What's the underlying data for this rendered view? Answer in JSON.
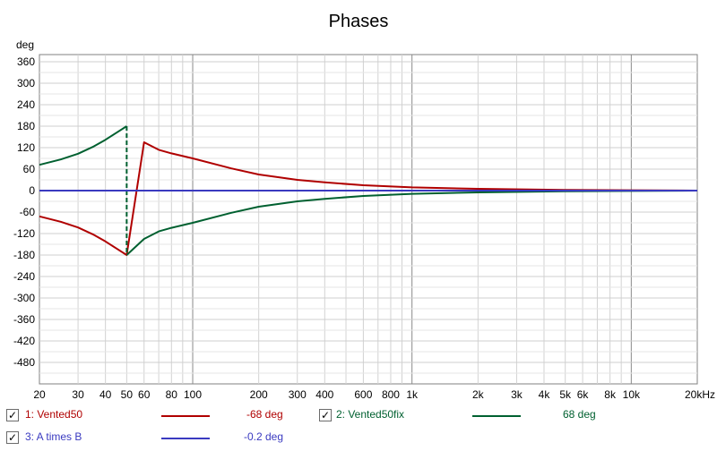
{
  "chart_data": {
    "type": "line",
    "title": "Phases",
    "ylabel": "deg",
    "xlabel": "",
    "x_scale": "log",
    "xlim": [
      20,
      20000
    ],
    "ylim": [
      -540,
      380
    ],
    "y_ticks": [
      360,
      300,
      240,
      180,
      120,
      60,
      0,
      -60,
      -120,
      -180,
      -240,
      -300,
      -360,
      -420,
      -480
    ],
    "x_tick_labels": [
      {
        "v": 20,
        "t": "20"
      },
      {
        "v": 30,
        "t": "30"
      },
      {
        "v": 40,
        "t": "40"
      },
      {
        "v": 50,
        "t": "50"
      },
      {
        "v": 60,
        "t": "60"
      },
      {
        "v": 80,
        "t": "80"
      },
      {
        "v": 100,
        "t": "100"
      },
      {
        "v": 200,
        "t": "200"
      },
      {
        "v": 300,
        "t": "300"
      },
      {
        "v": 400,
        "t": "400"
      },
      {
        "v": 600,
        "t": "600"
      },
      {
        "v": 800,
        "t": "800"
      },
      {
        "v": 1000,
        "t": "1k"
      },
      {
        "v": 2000,
        "t": "2k"
      },
      {
        "v": 3000,
        "t": "3k"
      },
      {
        "v": 4000,
        "t": "4k"
      },
      {
        "v": 5000,
        "t": "5k"
      },
      {
        "v": 6000,
        "t": "6k"
      },
      {
        "v": 8000,
        "t": "8k"
      },
      {
        "v": 10000,
        "t": "10k"
      },
      {
        "v": 20000,
        "t": "20kHz"
      }
    ],
    "grid": true,
    "series": [
      {
        "name": "1: Vented50",
        "color": "#b00000",
        "x": [
          20,
          25,
          30,
          35,
          40,
          45,
          50,
          60,
          70,
          80,
          100,
          150,
          200,
          300,
          400,
          600,
          1000,
          2000,
          5000,
          10000,
          20000
        ],
        "y": [
          -72,
          -87,
          -103,
          -122,
          -142,
          -162,
          -180,
          135,
          114,
          104,
          90,
          62,
          45,
          30,
          23,
          15,
          9,
          5,
          2,
          1,
          0
        ]
      },
      {
        "name": "2: Vented50fix",
        "color": "#006030",
        "x": [
          20,
          25,
          30,
          35,
          40,
          45,
          50,
          50,
          60,
          70,
          80,
          100,
          150,
          200,
          300,
          400,
          600,
          1000,
          2000,
          5000,
          10000,
          20000
        ],
        "y": [
          72,
          87,
          103,
          122,
          142,
          162,
          180,
          -180,
          -135,
          -114,
          -104,
          -90,
          -62,
          -45,
          -30,
          -23,
          -15,
          -9,
          -5,
          -2,
          -1,
          0
        ],
        "dashed_segment": [
          50,
          50
        ]
      },
      {
        "name": "3: A times B",
        "color": "#3a3ac0",
        "x": [
          20,
          20000
        ],
        "y": [
          0,
          0
        ]
      }
    ]
  },
  "legend": [
    {
      "checked": true,
      "label": "1: Vented50",
      "value": "-68 deg",
      "color": "#b00000"
    },
    {
      "checked": true,
      "label": "2: Vented50fix",
      "value": "68 deg",
      "color": "#006030"
    },
    {
      "checked": true,
      "label": "3: A times B",
      "value": "-0.2 deg",
      "color": "#3a3ac0"
    }
  ],
  "checkbox_glyph": "✓"
}
